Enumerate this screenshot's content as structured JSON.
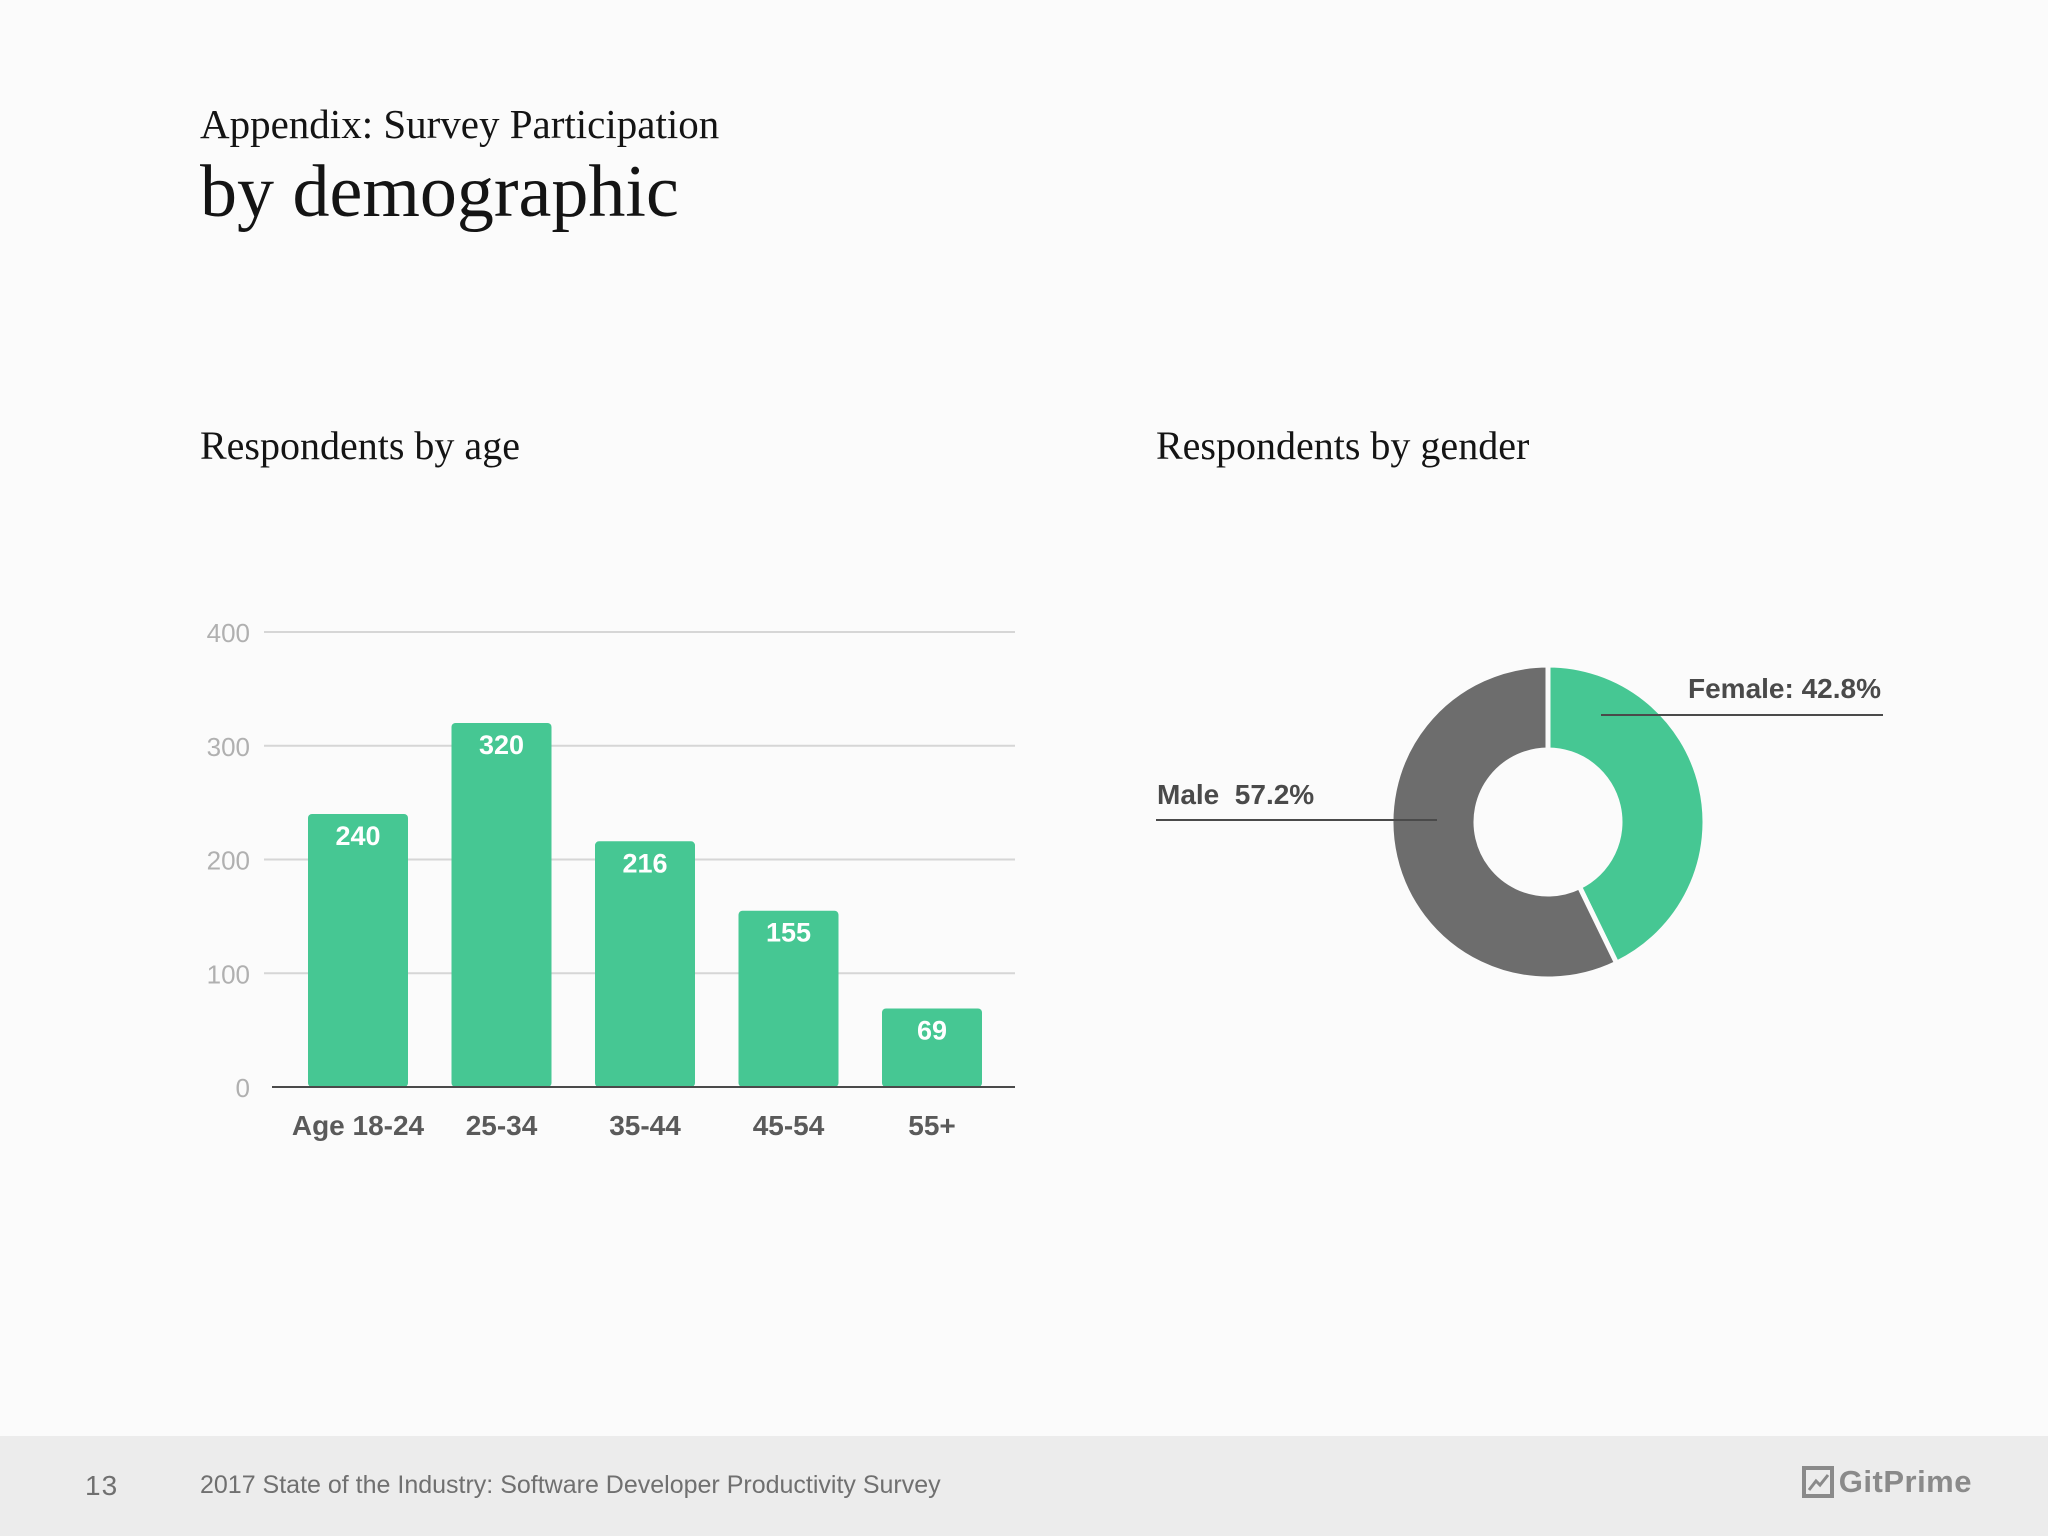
{
  "header": {
    "supertitle": "Appendix: Survey Participation",
    "title": "by demographic"
  },
  "colors": {
    "green": "#46c793",
    "gray": "#6d6d6d",
    "grid": "#d6d6d6",
    "axis": "#4a4a4a"
  },
  "footer": {
    "page_number": "13",
    "text": "2017 State of the Industry: Software Developer Productivity Survey",
    "brand": "GitPrime",
    "brand_icon": "gitprime-logo-icon"
  },
  "chart_data": [
    {
      "type": "bar",
      "title": "Respondents by age",
      "categories": [
        "Age 18-24",
        "25-34",
        "35-44",
        "45-54",
        "55+"
      ],
      "values": [
        240,
        320,
        216,
        155,
        69
      ],
      "ylim": [
        0,
        400
      ],
      "yticks": [
        "0",
        "100",
        "200",
        "300",
        "400"
      ],
      "grid": true,
      "data_labels": true
    },
    {
      "type": "pie",
      "title": "Respondents by gender",
      "donut": true,
      "slices": [
        {
          "label": "Female: 42.8%",
          "value": 42.8,
          "color": "#46c793"
        },
        {
          "label": "Male  57.2%",
          "value": 57.2,
          "color": "#6d6d6d"
        }
      ]
    }
  ]
}
